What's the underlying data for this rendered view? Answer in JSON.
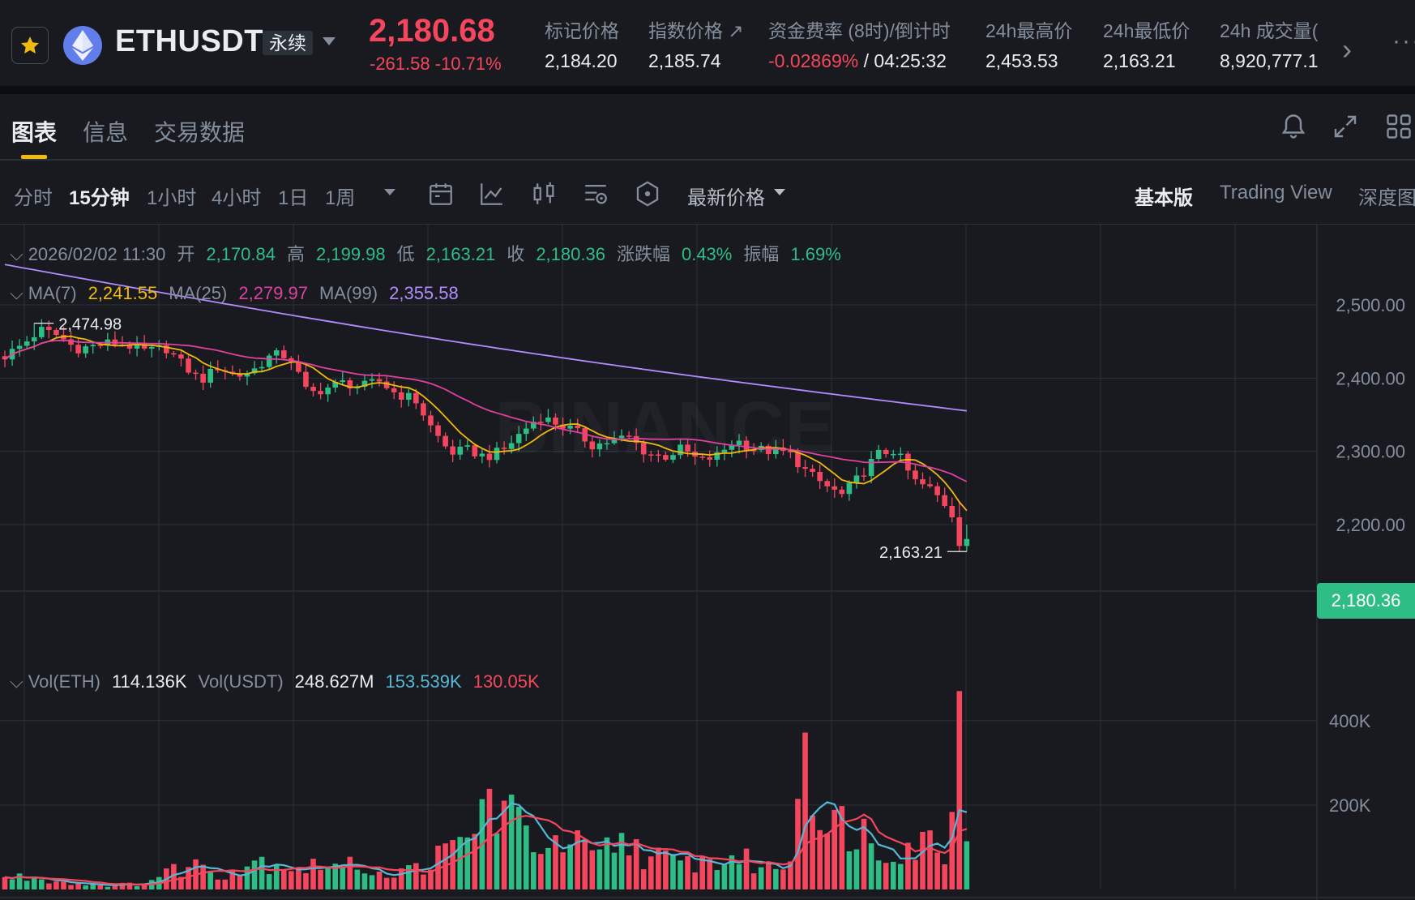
{
  "header": {
    "symbol": "ETHUSDT",
    "contract_type": "永续",
    "last_price": "2,180.68",
    "change": "-261.58",
    "change_pct": "-10.71%",
    "stats": [
      {
        "label": "标记价格",
        "value": "2,184.20"
      },
      {
        "label": "指数价格 ↗",
        "value": "2,185.74"
      },
      {
        "label": "资金费率 (8时)/倒计时",
        "value_neg": "-0.02869%",
        "value": " / 04:25:32"
      },
      {
        "label": "24h最高价",
        "value": "2,453.53"
      },
      {
        "label": "24h最低价",
        "value": "2,163.21"
      },
      {
        "label": "24h 成交量(",
        "value": "8,920,777.1"
      }
    ]
  },
  "tabs": [
    "图表",
    "信息",
    "交易数据"
  ],
  "timeframes": [
    "分时",
    "15分钟",
    "1小时",
    "4小时",
    "1日",
    "1周"
  ],
  "active_timeframe": "15分钟",
  "price_type": "最新价格",
  "views": [
    "基本版",
    "Trading View",
    "深度图"
  ],
  "active_view": "基本版",
  "ohlc": {
    "datetime": "2026/02/02 11:30",
    "open_label": "开",
    "open": "2,170.84",
    "high_label": "高",
    "high": "2,199.98",
    "low_label": "低",
    "low": "2,163.21",
    "close_label": "收",
    "close": "2,180.36",
    "change_label": "涨跌幅",
    "change": "0.43%",
    "amp_label": "振幅",
    "amp": "1.69%"
  },
  "ma": {
    "ma7_label": "MA(7)",
    "ma7": "2,241.55",
    "ma25_label": "MA(25)",
    "ma25": "2,279.97",
    "ma99_label": "MA(99)",
    "ma99": "2,355.58"
  },
  "vol": {
    "eth_label": "Vol(ETH)",
    "eth": "114.136K",
    "usdt_label": "Vol(USDT)",
    "usdt": "248.627M",
    "ma1": "153.539K",
    "ma2": "130.05K"
  },
  "current_price_tag": "2,180.36",
  "watermark": "BINANCE",
  "colors": {
    "up": "#2ebd85",
    "down": "#f6465d",
    "ma7": "#f0b90b",
    "ma25": "#e040a0",
    "ma99": "#b28cff",
    "vma1": "#56b8d4",
    "vma2": "#f6465d"
  },
  "chart_data": {
    "type": "candlestick",
    "price_axis": {
      "ticks": [
        2500,
        2400,
        2300,
        2200
      ],
      "tick_labels": [
        "2,500.00",
        "2,400.00",
        "2,300.00",
        "2,200.00"
      ],
      "range": [
        2120,
        2640
      ]
    },
    "volume_axis": {
      "ticks": [
        400000,
        200000
      ],
      "tick_labels": [
        "400K",
        "200K"
      ],
      "range": [
        0,
        520000
      ]
    },
    "annotations": {
      "high_marker": {
        "value": 2474.98,
        "label": "2,474.98"
      },
      "low_marker": {
        "value": 2163.21,
        "label": "2,163.21"
      }
    },
    "anchors": [
      2430,
      2446,
      2466,
      2458,
      2440,
      2444,
      2449,
      2444,
      2436,
      2442,
      2418,
      2396,
      2416,
      2402,
      2412,
      2432,
      2430,
      2378,
      2386,
      2394,
      2388,
      2396,
      2378,
      2372,
      2330,
      2298,
      2302,
      2292,
      2302,
      2326,
      2348,
      2338,
      2328,
      2308,
      2314,
      2320,
      2298,
      2292,
      2304,
      2286,
      2294,
      2316,
      2304,
      2300,
      2298,
      2272,
      2254,
      2240,
      2266,
      2296,
      2302,
      2260,
      2248,
      2222,
      2178
    ],
    "volume_anchors": [
      26000,
      30000,
      28000,
      20000,
      15000,
      12000,
      10000,
      12000,
      16000,
      40000,
      52000,
      60000,
      38000,
      46000,
      70000,
      64000,
      58000,
      50000,
      65000,
      50000,
      62000,
      40000,
      36000,
      50000,
      70000,
      90000,
      120000,
      210000,
      190000,
      140000,
      120000,
      90000,
      110000,
      70000,
      100000,
      120000,
      80000,
      70000,
      60000,
      70000,
      60000,
      80000,
      60000,
      50000,
      60000,
      410000,
      120000,
      160000,
      150000,
      90000,
      110000,
      100000,
      120000,
      90000,
      470000
    ]
  }
}
